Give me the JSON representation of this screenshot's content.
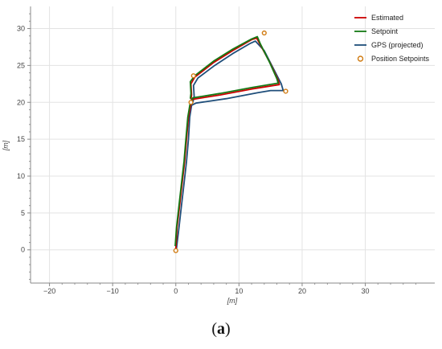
{
  "chart_data": {
    "type": "line",
    "xlabel": "[m]",
    "ylabel": "[m]",
    "xlim": [
      -23,
      41
    ],
    "ylim": [
      -4.5,
      33
    ],
    "xticks": [
      -20,
      -10,
      0,
      10,
      20,
      30
    ],
    "yticks": [
      0,
      5,
      10,
      15,
      20,
      25,
      30
    ],
    "grid": true,
    "legend_position": "top-right",
    "series": [
      {
        "name": "Estimated",
        "color": "#cc0000",
        "points": [
          [
            0,
            0.2
          ],
          [
            0.2,
            3
          ],
          [
            0.6,
            6
          ],
          [
            1.0,
            9
          ],
          [
            1.4,
            12
          ],
          [
            1.7,
            15
          ],
          [
            2.0,
            18
          ],
          [
            2.4,
            19.8
          ],
          [
            2.6,
            20.4
          ],
          [
            7,
            21
          ],
          [
            12,
            21.8
          ],
          [
            16.4,
            22.4
          ],
          [
            16.2,
            23
          ],
          [
            15,
            25.2
          ],
          [
            13.5,
            27.6
          ],
          [
            12.8,
            28.7
          ],
          [
            12,
            28.5
          ],
          [
            9,
            27
          ],
          [
            6,
            25.4
          ],
          [
            3,
            23.4
          ],
          [
            2.4,
            22.5
          ],
          [
            2.5,
            21
          ],
          [
            2.4,
            20.4
          ]
        ]
      },
      {
        "name": "Setpoint",
        "color": "#157a15",
        "points": [
          [
            -0.1,
            0.5
          ],
          [
            0.1,
            3
          ],
          [
            0.5,
            6
          ],
          [
            0.9,
            9
          ],
          [
            1.3,
            12
          ],
          [
            1.6,
            15
          ],
          [
            1.9,
            18
          ],
          [
            2.3,
            20
          ],
          [
            2.7,
            20.6
          ],
          [
            7,
            21.2
          ],
          [
            12,
            22
          ],
          [
            16.2,
            22.6
          ],
          [
            16,
            23.2
          ],
          [
            14.8,
            25.5
          ],
          [
            13.4,
            27.9
          ],
          [
            12.9,
            28.9
          ],
          [
            12,
            28.6
          ],
          [
            9,
            27.2
          ],
          [
            6,
            25.6
          ],
          [
            3,
            23.6
          ],
          [
            2.3,
            22.8
          ],
          [
            2.4,
            21.2
          ],
          [
            2.3,
            20.5
          ]
        ]
      },
      {
        "name": "GPS (projected)",
        "color": "#1f4e7a",
        "points": [
          [
            0.1,
            0.2
          ],
          [
            0.5,
            3
          ],
          [
            0.9,
            6
          ],
          [
            1.3,
            9
          ],
          [
            1.7,
            12
          ],
          [
            2.0,
            15
          ],
          [
            2.2,
            18
          ],
          [
            2.5,
            19.6
          ],
          [
            3.2,
            19.9
          ],
          [
            8,
            20.5
          ],
          [
            13,
            21.3
          ],
          [
            15,
            21.6
          ],
          [
            17,
            21.6
          ],
          [
            16.7,
            22.5
          ],
          [
            15.5,
            24.5
          ],
          [
            14,
            27
          ],
          [
            12.6,
            28.3
          ],
          [
            11.8,
            28
          ],
          [
            9,
            26.6
          ],
          [
            6,
            24.9
          ],
          [
            3.5,
            23.3
          ],
          [
            2.8,
            22.3
          ],
          [
            2.9,
            20.8
          ],
          [
            2.7,
            20
          ]
        ]
      }
    ],
    "scatter": {
      "name": "Position Setpoints",
      "color": "#d07a10",
      "points": [
        [
          0,
          -0.1
        ],
        [
          2.8,
          23.6
        ],
        [
          14,
          29.4
        ],
        [
          17.4,
          21.5
        ],
        [
          2.4,
          20
        ]
      ]
    }
  },
  "caption": {
    "open": "(",
    "letter": "a",
    "close": ")"
  }
}
